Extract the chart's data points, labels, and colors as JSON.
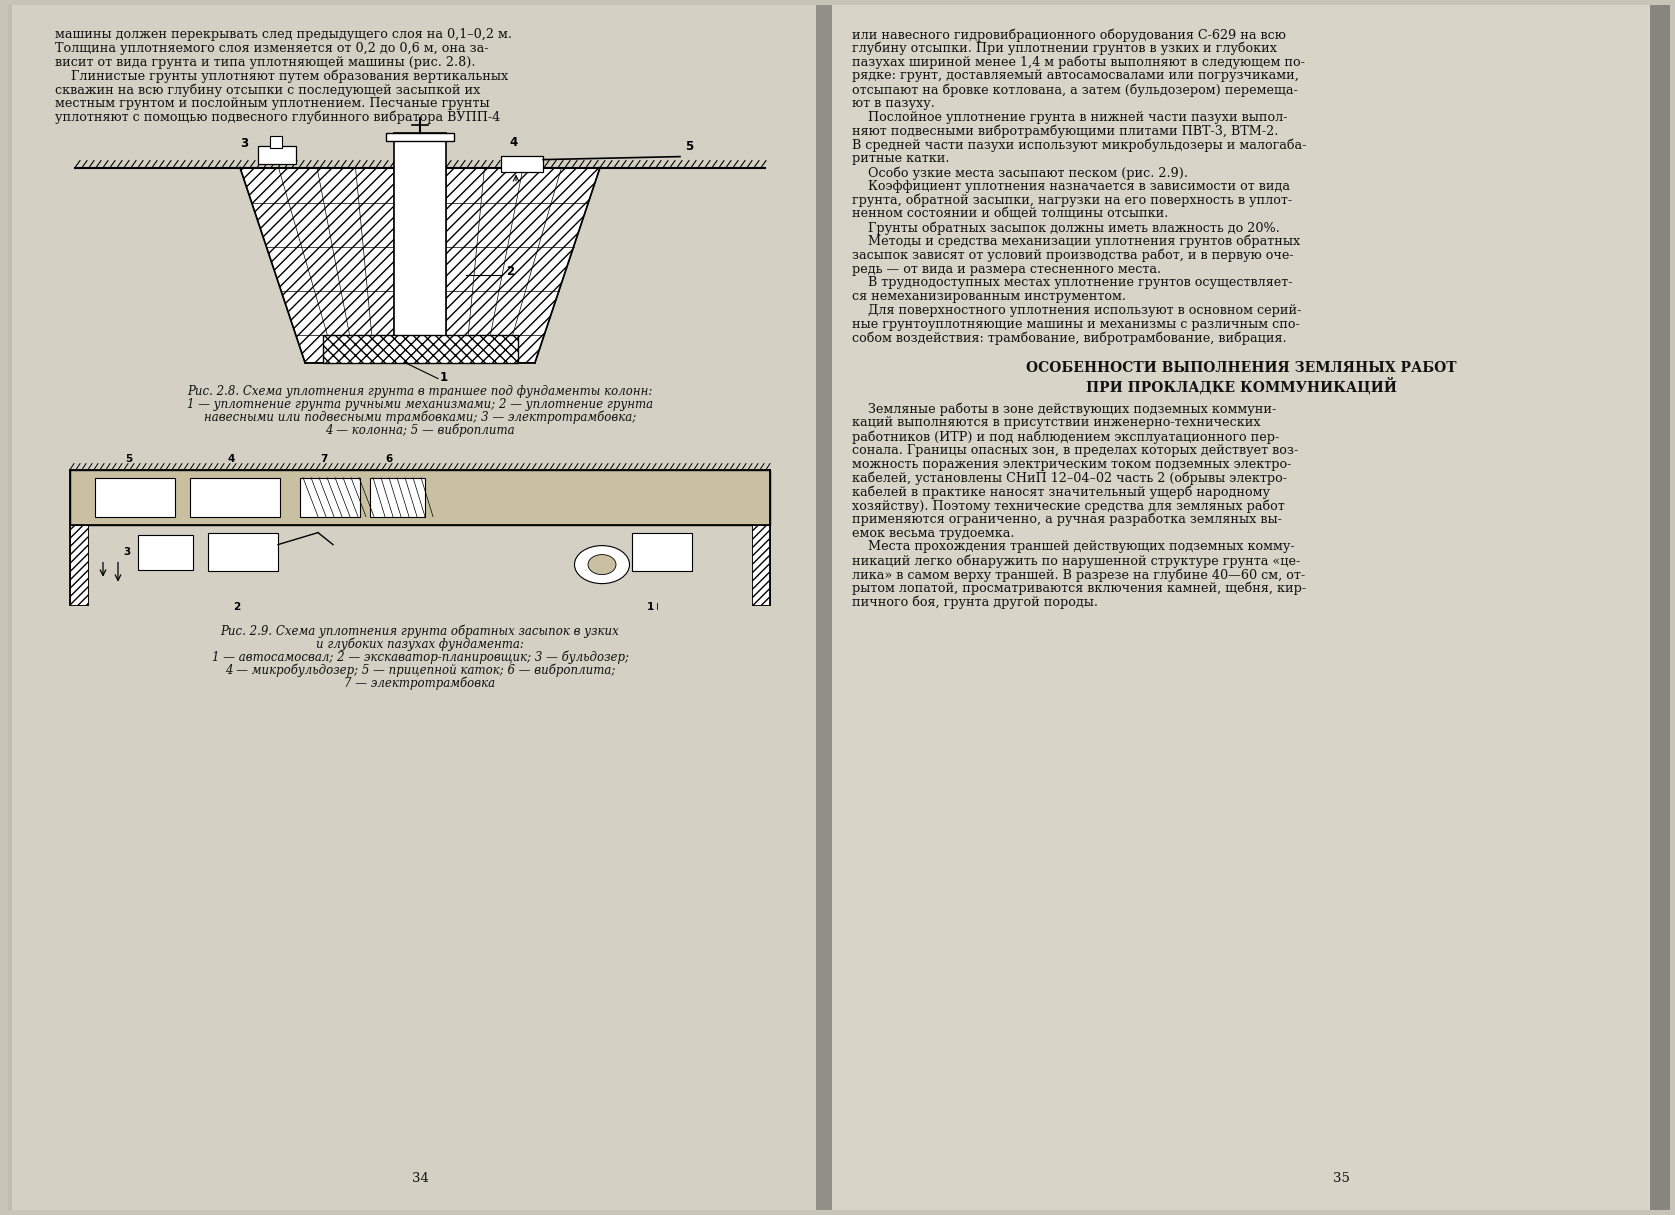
{
  "page_bg": "#c8c4b8",
  "left_page_bg": "#d4d0c4",
  "right_page_bg": "#d8d4c8",
  "spine_shadow": "#a8a49a",
  "text_color": "#111111",
  "left_page_number": "34",
  "right_page_number": "35",
  "left_top_text": [
    "машины должен перекрывать след предыдущего слоя на 0,1–0,2 м.",
    "Толщина уплотняемого слоя изменяется от 0,2 до 0,6 м, она за-",
    "висит от вида грунта и типа уплотняющей машины (рис. 2.8).",
    "    Глинистые грунты уплотняют путем образования вертикальных",
    "скважин на всю глубину отсыпки с последующей засыпкой их",
    "местным грунтом и послойным уплотнением. Песчаные грунты",
    "уплотняют с помощью подвесного глубинного вибратора ВУПП-4"
  ],
  "fig28_caption": [
    "Рис. 2.8. Схема уплотнения грунта в траншее под фундаменты колонн:",
    "1 — уплотнение грунта ручными механизмами; 2 — уплотнение грунта",
    "навесными или подвесными трамбовками; 3 — электротрамбовка;",
    "4 — колонна; 5 — виброплита"
  ],
  "fig29_caption": [
    "Рис. 2.9. Схема уплотнения грунта обратных засыпок в узких",
    "и глубоких пазухах фундамента:",
    "1 — автосамосвал; 2 — экскаватор-планировщик; 3 — бульдозер;",
    "4 — микробульдозер; 5 — прицепной каток; 6 — виброплита;",
    "7 — электротрамбовка"
  ],
  "right_top_text": [
    "или навесного гидровибрационного оборудования С-629 на всю",
    "глубину отсыпки. При уплотнении грунтов в узких и глубоких",
    "пазухах шириной менее 1,4 м работы выполняют в следующем по-",
    "рядке: грунт, доставляемый автосамосвалами или погрузчиками,",
    "отсыпают на бровке котлована, а затем (бульдозером) перемеща-",
    "ют в пазуху.",
    "    Послойное уплотнение грунта в нижней части пазухи выпол-",
    "няют подвесными вибротрамбующими плитами ПВТ-3, ВТМ-2.",
    "В средней части пазухи используют микробульдозеры и малогаба-",
    "ритные катки.",
    "    Особо узкие места засыпают песком (рис. 2.9).",
    "    Коэффициент уплотнения назначается в зависимости от вида",
    "грунта, обратной засыпки, нагрузки на его поверхность в уплот-",
    "ненном состоянии и общей толщины отсыпки.",
    "    Грунты обратных засыпок должны иметь влажность до 20%.",
    "    Методы и средства механизации уплотнения грунтов обратных",
    "засыпок зависят от условий производства работ, и в первую оче-",
    "редь — от вида и размера стесненного места.",
    "    В труднодоступных местах уплотнение грунтов осуществляет-",
    "ся немеханизированным инструментом.",
    "    Для поверхностного уплотнения используют в основном серий-",
    "ные грунтоуплотняющие машины и механизмы с различным спо-",
    "собом воздействия: трамбование, вибротрамбование, вибрация."
  ],
  "right_section_title": [
    "ОСОБЕННОСТИ ВЫПОЛНЕНИЯ ЗЕМЛЯНЫХ РАБОТ",
    "ПРИ ПРОКЛАДКЕ КОММУНИКАЦИЙ"
  ],
  "right_bottom_text": [
    "    Земляные работы в зоне действующих подземных коммуни-",
    "каций выполняются в присутствии инженерно-технических",
    "работников (ИТР) и под наблюдением эксплуатационного пер-",
    "сонала. Границы опасных зон, в пределах которых действует воз-",
    "можность поражения электрическим током подземных электро-",
    "кабелей, установлены СНиП 12–04–02 часть 2 (обрывы электро-",
    "кабелей в практике наносят значительный ущерб народному",
    "хозяйству). Поэтому технические средства для земляных работ",
    "применяются ограниченно, а ручная разработка земляных вы-",
    "емок весьма трудоемка.",
    "    Места прохождения траншей действующих подземных комму-",
    "никаций легко обнаружить по нарушенной структуре грунта «це-",
    "лика» в самом верху траншей. В разрезе на глубине 40—60 см, от-",
    "рытом лопатой, просматриваются включения камней, щебня, кир-",
    "пичного боя, грунта другой породы."
  ]
}
